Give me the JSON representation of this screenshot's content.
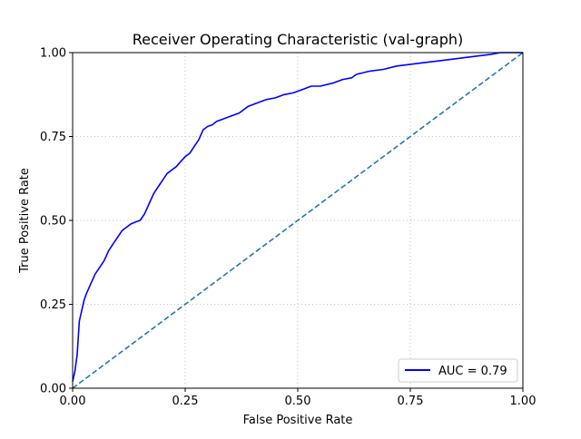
{
  "chart_data": {
    "type": "line",
    "title": "Receiver Operating Characteristic (val-graph)",
    "xlabel": "False Positive Rate",
    "ylabel": "True Positive Rate",
    "xlim": [
      0,
      1
    ],
    "ylim": [
      0,
      1
    ],
    "xticks": [
      {
        "value": 0,
        "label": "0.00"
      },
      {
        "value": 0.25,
        "label": "0.25"
      },
      {
        "value": 0.5,
        "label": "0.50"
      },
      {
        "value": 0.75,
        "label": "0.75"
      },
      {
        "value": 1,
        "label": "1.00"
      }
    ],
    "yticks": [
      {
        "value": 0,
        "label": "0.00"
      },
      {
        "value": 0.25,
        "label": "0.25"
      },
      {
        "value": 0.5,
        "label": "0.50"
      },
      {
        "value": 0.75,
        "label": "0.75"
      },
      {
        "value": 1,
        "label": "1.00"
      }
    ],
    "grid": true,
    "legend_position": "lower-right",
    "series": [
      {
        "name": "AUC = 0.79",
        "color": "#0000ff",
        "style": "solid",
        "x": [
          0,
          0.005,
          0.01,
          0.015,
          0.02,
          0.025,
          0.03,
          0.04,
          0.05,
          0.06,
          0.07,
          0.08,
          0.09,
          0.1,
          0.11,
          0.12,
          0.13,
          0.14,
          0.15,
          0.16,
          0.17,
          0.18,
          0.19,
          0.2,
          0.21,
          0.22,
          0.23,
          0.24,
          0.25,
          0.26,
          0.27,
          0.28,
          0.29,
          0.3,
          0.31,
          0.32,
          0.33,
          0.35,
          0.37,
          0.39,
          0.41,
          0.43,
          0.45,
          0.47,
          0.49,
          0.51,
          0.53,
          0.55,
          0.58,
          0.6,
          0.62,
          0.63,
          0.66,
          0.69,
          0.72,
          0.75,
          0.78,
          0.81,
          0.84,
          0.87,
          0.9,
          0.93,
          0.95,
          1.0
        ],
        "y": [
          0.02,
          0.05,
          0.1,
          0.2,
          0.23,
          0.26,
          0.28,
          0.31,
          0.34,
          0.36,
          0.38,
          0.41,
          0.43,
          0.45,
          0.47,
          0.48,
          0.49,
          0.495,
          0.5,
          0.52,
          0.55,
          0.58,
          0.6,
          0.62,
          0.64,
          0.65,
          0.66,
          0.675,
          0.69,
          0.7,
          0.72,
          0.74,
          0.77,
          0.78,
          0.785,
          0.795,
          0.8,
          0.81,
          0.82,
          0.84,
          0.85,
          0.86,
          0.865,
          0.875,
          0.88,
          0.89,
          0.9,
          0.9,
          0.91,
          0.92,
          0.925,
          0.935,
          0.945,
          0.95,
          0.96,
          0.965,
          0.97,
          0.975,
          0.98,
          0.985,
          0.99,
          0.995,
          1.0,
          1.0
        ]
      },
      {
        "name": "",
        "color": "#1f77b4",
        "style": "dashed",
        "x": [
          0,
          1
        ],
        "y": [
          0,
          1
        ]
      }
    ]
  }
}
